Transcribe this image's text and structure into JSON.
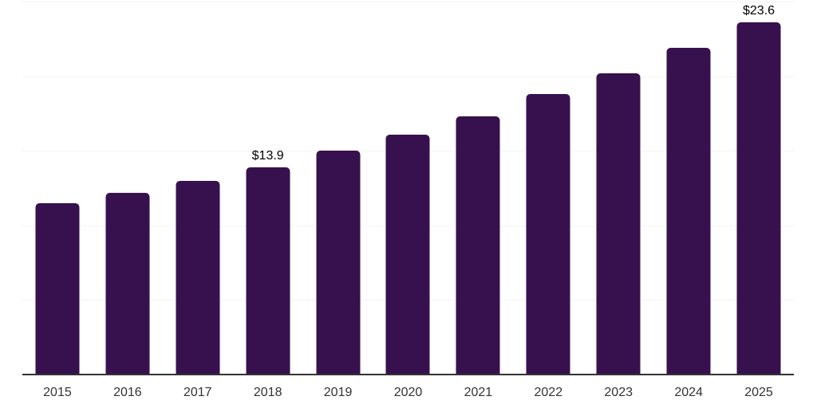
{
  "chart_data": {
    "type": "bar",
    "title": "",
    "xlabel": "",
    "ylabel": "",
    "categories": [
      "2015",
      "2016",
      "2017",
      "2018",
      "2019",
      "2020",
      "2021",
      "2022",
      "2023",
      "2024",
      "2025"
    ],
    "values": [
      11.5,
      12.2,
      13.0,
      13.9,
      15.0,
      16.1,
      17.3,
      18.8,
      20.2,
      21.9,
      23.6
    ],
    "data_labels": {
      "2018": "$13.9",
      "2025": "$23.6"
    },
    "ylim": [
      0,
      25
    ],
    "grid_step": 5,
    "grid_on": true,
    "legend": "none",
    "colors": {
      "bar": "#37114d",
      "axis": "#333333",
      "gridline": "#f3f3f3",
      "tick_label": "#333333",
      "value_label": "#000000",
      "background": "#ffffff"
    }
  }
}
